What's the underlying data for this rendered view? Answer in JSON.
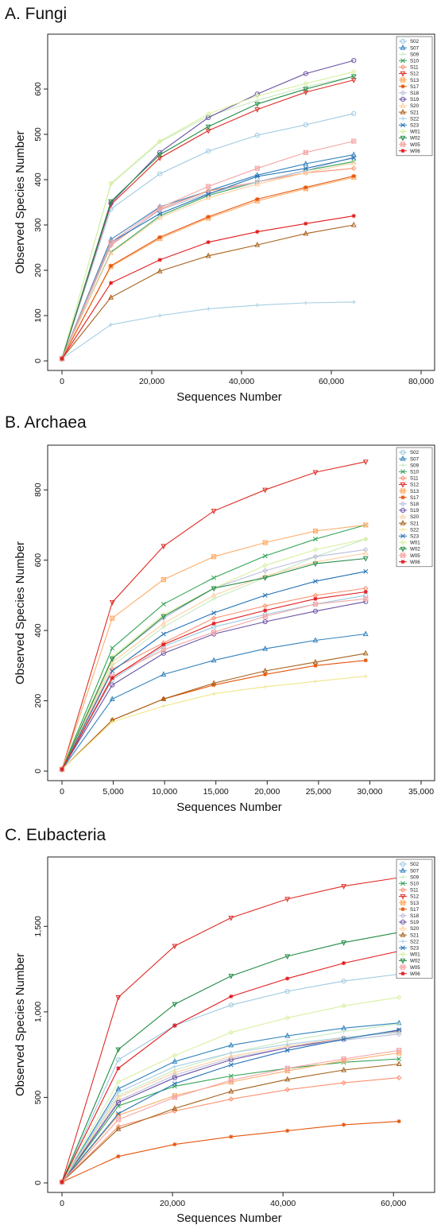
{
  "chart_data": [
    {
      "type": "line",
      "title": "A. Fungi",
      "xlabel": "Sequences Number",
      "ylabel": "Observed Species Number",
      "xlim": [
        0,
        80000
      ],
      "ylim": [
        0,
        700
      ],
      "xticks": [
        0,
        20000,
        40000,
        60000,
        80000
      ],
      "xtick_labels": [
        "0",
        "20,000",
        "40,000",
        "60,000",
        "80,000"
      ],
      "yticks": [
        0,
        100,
        200,
        300,
        400,
        500,
        600
      ],
      "ytick_labels": [
        "0",
        "100",
        "200",
        "300",
        "400",
        "500",
        "600"
      ],
      "legend_position": "top-right",
      "x": [
        0,
        10900,
        21800,
        32600,
        43500,
        54300,
        65000
      ],
      "series": [
        {
          "name": "S02",
          "color": "#9ecae1",
          "marker": "circle",
          "values": [
            5,
            335,
            413,
            463,
            498,
            521,
            546
          ]
        },
        {
          "name": "S07",
          "color": "#3182bd",
          "marker": "triangle-up",
          "values": [
            5,
            268,
            340,
            375,
            410,
            435,
            455
          ]
        },
        {
          "name": "S09",
          "color": "#c7e9c0",
          "marker": "plus",
          "values": [
            5,
            390,
            483,
            540,
            575,
            605,
            628
          ]
        },
        {
          "name": "S10",
          "color": "#31a354",
          "marker": "x",
          "values": [
            5,
            240,
            320,
            365,
            395,
            420,
            440
          ]
        },
        {
          "name": "S11",
          "color": "#fc9272",
          "marker": "diamond",
          "values": [
            5,
            255,
            335,
            375,
            395,
            415,
            425
          ]
        },
        {
          "name": "S12",
          "color": "#de2d26",
          "marker": "triangle-down",
          "values": [
            5,
            345,
            448,
            508,
            555,
            593,
            620
          ]
        },
        {
          "name": "S13",
          "color": "#fdae6b",
          "marker": "square-x",
          "values": [
            5,
            208,
            270,
            315,
            353,
            380,
            405
          ]
        },
        {
          "name": "S17",
          "color": "#e6550d",
          "marker": "star",
          "values": [
            5,
            210,
            273,
            318,
            357,
            383,
            408
          ]
        },
        {
          "name": "S18",
          "color": "#bcbddc",
          "marker": "diamond",
          "values": [
            5,
            258,
            333,
            370,
            395,
            420,
            450
          ]
        },
        {
          "name": "S19",
          "color": "#6a51a3",
          "marker": "circle",
          "values": [
            5,
            348,
            460,
            537,
            589,
            634,
            663
          ]
        },
        {
          "name": "S20",
          "color": "#fdd0a2",
          "marker": "triangle-up",
          "values": [
            5,
            238,
            316,
            360,
            390,
            415,
            437
          ]
        },
        {
          "name": "S21",
          "color": "#a6611a",
          "marker": "triangle-up",
          "values": [
            5,
            140,
            198,
            232,
            256,
            281,
            300
          ]
        },
        {
          "name": "S22",
          "color": "#a6cee3",
          "marker": "plus",
          "values": [
            5,
            80,
            100,
            115,
            123,
            128,
            130
          ]
        },
        {
          "name": "S23",
          "color": "#2171b5",
          "marker": "x",
          "values": [
            5,
            262,
            325,
            368,
            407,
            425,
            448
          ]
        },
        {
          "name": "W01",
          "color": "#d9f0a3",
          "marker": "diamond",
          "values": [
            5,
            392,
            485,
            545,
            585,
            612,
            638
          ]
        },
        {
          "name": "W02",
          "color": "#238b45",
          "marker": "triangle-down",
          "values": [
            5,
            352,
            455,
            517,
            567,
            600,
            628
          ]
        },
        {
          "name": "W05",
          "color": "#f4a6a6",
          "marker": "square-x",
          "values": [
            5,
            262,
            338,
            385,
            425,
            460,
            485
          ]
        },
        {
          "name": "W06",
          "color": "#e31a1c",
          "marker": "star",
          "values": [
            5,
            172,
            223,
            262,
            285,
            303,
            320
          ]
        }
      ]
    },
    {
      "type": "line",
      "title": "B. Archaea",
      "xlabel": "Sequences Number",
      "ylabel": "Observed Species Number",
      "xlim": [
        0,
        35000
      ],
      "ylim": [
        0,
        900
      ],
      "xticks": [
        0,
        5000,
        10000,
        15000,
        20000,
        25000,
        30000,
        35000
      ],
      "xtick_labels": [
        "0",
        "5,000",
        "10,000",
        "15,000",
        "20,000",
        "25,000",
        "30,000",
        "35,000"
      ],
      "yticks": [
        0,
        200,
        400,
        600,
        800
      ],
      "ytick_labels": [
        "0",
        "200",
        "400",
        "600",
        "800"
      ],
      "legend_position": "top-right",
      "x": [
        0,
        4900,
        9900,
        14800,
        19800,
        24700,
        29600
      ],
      "series": [
        {
          "name": "S02",
          "color": "#9ecae1",
          "marker": "circle",
          "values": [
            5,
            260,
            355,
            410,
            445,
            475,
            500
          ]
        },
        {
          "name": "S07",
          "color": "#3182bd",
          "marker": "triangle-up",
          "values": [
            5,
            205,
            275,
            315,
            348,
            372,
            390
          ]
        },
        {
          "name": "S09",
          "color": "#c7e9c0",
          "marker": "plus",
          "values": [
            5,
            300,
            410,
            490,
            550,
            610,
            660
          ]
        },
        {
          "name": "S10",
          "color": "#31a354",
          "marker": "x",
          "values": [
            5,
            350,
            475,
            550,
            612,
            660,
            700
          ]
        },
        {
          "name": "S11",
          "color": "#fc9272",
          "marker": "diamond",
          "values": [
            5,
            290,
            365,
            435,
            470,
            500,
            520
          ]
        },
        {
          "name": "S12",
          "color": "#de2d26",
          "marker": "triangle-down",
          "values": [
            5,
            480,
            640,
            740,
            800,
            850,
            880
          ]
        },
        {
          "name": "S13",
          "color": "#fdae6b",
          "marker": "square-x",
          "values": [
            5,
            435,
            545,
            610,
            650,
            683,
            700
          ]
        },
        {
          "name": "S17",
          "color": "#e6550d",
          "marker": "star",
          "values": [
            5,
            145,
            205,
            245,
            275,
            300,
            315
          ]
        },
        {
          "name": "S18",
          "color": "#bcbddc",
          "marker": "diamond",
          "values": [
            5,
            320,
            435,
            520,
            570,
            610,
            630
          ]
        },
        {
          "name": "S19",
          "color": "#6a51a3",
          "marker": "circle",
          "values": [
            5,
            245,
            335,
            390,
            425,
            455,
            482
          ]
        },
        {
          "name": "S20",
          "color": "#fdd0a2",
          "marker": "triangle-up",
          "values": [
            5,
            310,
            420,
            500,
            555,
            595,
            620
          ]
        },
        {
          "name": "S21",
          "color": "#a6611a",
          "marker": "triangle-up",
          "values": [
            5,
            145,
            205,
            250,
            285,
            310,
            335
          ]
        },
        {
          "name": "S22",
          "color": "#f0e68c",
          "marker": "plus",
          "values": [
            5,
            140,
            185,
            220,
            240,
            255,
            270
          ]
        },
        {
          "name": "S23",
          "color": "#2171b5",
          "marker": "x",
          "values": [
            5,
            285,
            390,
            450,
            500,
            540,
            568
          ]
        },
        {
          "name": "W01",
          "color": "#d9f0a3",
          "marker": "diamond",
          "values": [
            5,
            325,
            445,
            520,
            585,
            630,
            660
          ]
        },
        {
          "name": "W02",
          "color": "#238b45",
          "marker": "triangle-down",
          "values": [
            5,
            320,
            440,
            520,
            550,
            590,
            605
          ]
        },
        {
          "name": "W05",
          "color": "#f4a6a6",
          "marker": "square-x",
          "values": [
            5,
            270,
            345,
            395,
            440,
            475,
            490
          ]
        },
        {
          "name": "W06",
          "color": "#e31a1c",
          "marker": "star",
          "values": [
            5,
            265,
            360,
            420,
            457,
            490,
            510
          ]
        }
      ]
    },
    {
      "type": "line",
      "title": "C. Eubacteria",
      "xlabel": "Sequences Number",
      "ylabel": "Observed Species Number",
      "xlim": [
        0,
        65000
      ],
      "ylim": [
        0,
        1850
      ],
      "xticks": [
        0,
        20000,
        40000,
        60000
      ],
      "xtick_labels": [
        "0",
        "20,000",
        "40,000",
        "60,000"
      ],
      "yticks": [
        0,
        500,
        1000,
        1500
      ],
      "ytick_labels": [
        "0",
        "500",
        "1,000",
        "1,500"
      ],
      "legend_position": "top-right",
      "x": [
        0,
        10200,
        20400,
        30600,
        40800,
        51000,
        61000
      ],
      "series": [
        {
          "name": "S02",
          "color": "#9ecae1",
          "marker": "circle",
          "values": [
            5,
            720,
            920,
            1040,
            1120,
            1180,
            1220
          ]
        },
        {
          "name": "S07",
          "color": "#3182bd",
          "marker": "triangle-up",
          "values": [
            5,
            550,
            710,
            805,
            860,
            905,
            935
          ]
        },
        {
          "name": "S09",
          "color": "#c7e9c0",
          "marker": "plus",
          "values": [
            5,
            510,
            660,
            760,
            830,
            885,
            930
          ]
        },
        {
          "name": "S10",
          "color": "#31a354",
          "marker": "x",
          "values": [
            5,
            450,
            565,
            625,
            670,
            705,
            725
          ]
        },
        {
          "name": "S11",
          "color": "#fc9272",
          "marker": "diamond",
          "values": [
            5,
            330,
            420,
            490,
            545,
            585,
            615
          ]
        },
        {
          "name": "S12",
          "color": "#de2d26",
          "marker": "triangle-down",
          "values": [
            5,
            1085,
            1385,
            1550,
            1660,
            1735,
            1785
          ]
        },
        {
          "name": "S13",
          "color": "#fdae6b",
          "marker": "square-x",
          "values": [
            5,
            395,
            510,
            590,
            655,
            715,
            760
          ]
        },
        {
          "name": "S17",
          "color": "#e6550d",
          "marker": "star",
          "values": [
            5,
            155,
            225,
            270,
            305,
            340,
            360
          ]
        },
        {
          "name": "S18",
          "color": "#bcbddc",
          "marker": "diamond",
          "values": [
            5,
            480,
            630,
            730,
            790,
            835,
            870
          ]
        },
        {
          "name": "S19",
          "color": "#6a51a3",
          "marker": "circle",
          "values": [
            5,
            470,
            615,
            720,
            790,
            845,
            890
          ]
        },
        {
          "name": "S20",
          "color": "#fdd0a2",
          "marker": "triangle-up",
          "values": [
            5,
            500,
            645,
            740,
            800,
            845,
            885
          ]
        },
        {
          "name": "S21",
          "color": "#a6611a",
          "marker": "triangle-up",
          "values": [
            5,
            315,
            435,
            535,
            605,
            660,
            695
          ]
        },
        {
          "name": "S22",
          "color": "#a6cee3",
          "marker": "plus",
          "values": [
            5,
            530,
            680,
            760,
            810,
            850,
            880
          ]
        },
        {
          "name": "S23",
          "color": "#2171b5",
          "marker": "x",
          "values": [
            5,
            405,
            580,
            690,
            775,
            840,
            895
          ]
        },
        {
          "name": "W01",
          "color": "#d9f0a3",
          "marker": "diamond",
          "values": [
            5,
            590,
            745,
            880,
            965,
            1035,
            1085
          ]
        },
        {
          "name": "W02",
          "color": "#238b45",
          "marker": "triangle-down",
          "values": [
            5,
            780,
            1045,
            1210,
            1325,
            1405,
            1465
          ]
        },
        {
          "name": "W05",
          "color": "#f4a6a6",
          "marker": "square-x",
          "values": [
            5,
            370,
            500,
            600,
            670,
            725,
            775
          ]
        },
        {
          "name": "W06",
          "color": "#e31a1c",
          "marker": "star",
          "values": [
            5,
            670,
            920,
            1090,
            1195,
            1285,
            1355
          ]
        }
      ]
    }
  ]
}
